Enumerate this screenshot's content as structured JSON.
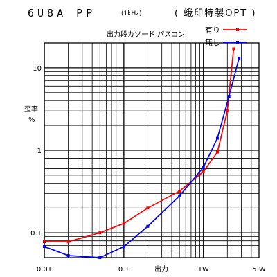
{
  "title": {
    "main": "6U8A PP",
    "condition": "(1kHz)",
    "note": "( 蛾印特製OPT )"
  },
  "legend_caption": "出力段カソード パスコン",
  "chart_data": {
    "type": "line",
    "xlabel": "出力",
    "ylabel_line1": "歪率",
    "ylabel_line2": "%",
    "xscale": "log",
    "yscale": "log",
    "xlim": [
      0.01,
      5
    ],
    "ylim": [
      0.05,
      20
    ],
    "grid": true,
    "legend_position": "top-right",
    "x_tick_labels": [
      {
        "value": 0.01,
        "label": "0.01"
      },
      {
        "value": 0.1,
        "label": "0.1"
      },
      {
        "value": 1,
        "label": "1W"
      },
      {
        "value": 5,
        "label": "5 W"
      }
    ],
    "y_tick_labels": [
      {
        "value": 10,
        "label": "10"
      },
      {
        "value": 1,
        "label": "1"
      },
      {
        "value": 0.1,
        "label": "0.1"
      }
    ],
    "series": [
      {
        "name": "有り",
        "color": "#ff0000",
        "points": [
          [
            0.01,
            0.078
          ],
          [
            0.02,
            0.078
          ],
          [
            0.05,
            0.1
          ],
          [
            0.1,
            0.13
          ],
          [
            0.2,
            0.2
          ],
          [
            0.5,
            0.32
          ],
          [
            1.0,
            0.55
          ],
          [
            1.5,
            0.95
          ],
          [
            2.0,
            3.0
          ],
          [
            2.4,
            17.0
          ]
        ]
      },
      {
        "name": "無し",
        "color": "#0000ff",
        "points": [
          [
            0.01,
            0.068
          ],
          [
            0.02,
            0.053
          ],
          [
            0.05,
            0.05
          ],
          [
            0.1,
            0.068
          ],
          [
            0.2,
            0.12
          ],
          [
            0.5,
            0.28
          ],
          [
            1.0,
            0.62
          ],
          [
            1.5,
            1.4
          ],
          [
            2.1,
            4.5
          ],
          [
            2.8,
            13.0
          ]
        ]
      }
    ]
  }
}
